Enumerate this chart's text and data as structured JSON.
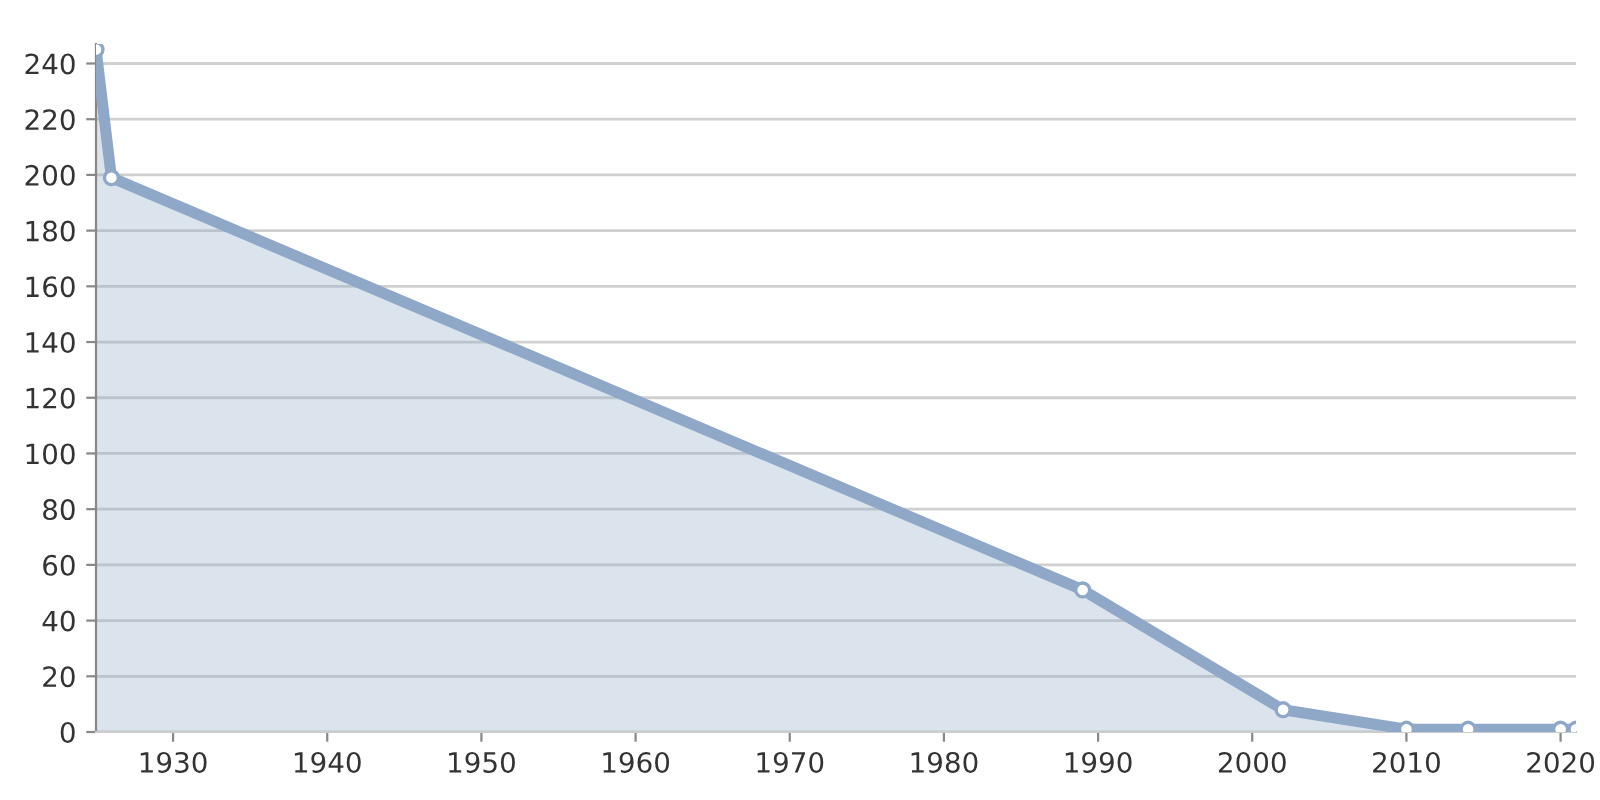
{
  "chart_data": {
    "type": "area",
    "x": [
      1925,
      1926,
      1989,
      2002,
      2010,
      2014,
      2020,
      2021
    ],
    "series": [
      {
        "color": "#8fa8c8",
        "values": [
          245,
          199,
          51,
          8,
          1,
          1,
          1,
          1
        ]
      }
    ],
    "xlim": [
      1925,
      2021
    ],
    "xticks": [
      1930,
      1940,
      1950,
      1960,
      1970,
      1980,
      1990,
      2000,
      2010,
      2020
    ],
    "ylim": [
      0,
      247
    ],
    "yticks": [
      0,
      20,
      40,
      60,
      80,
      100,
      120,
      140,
      160,
      180,
      200,
      220,
      240
    ],
    "grid": "y",
    "marker": "circle",
    "legend": false
  }
}
